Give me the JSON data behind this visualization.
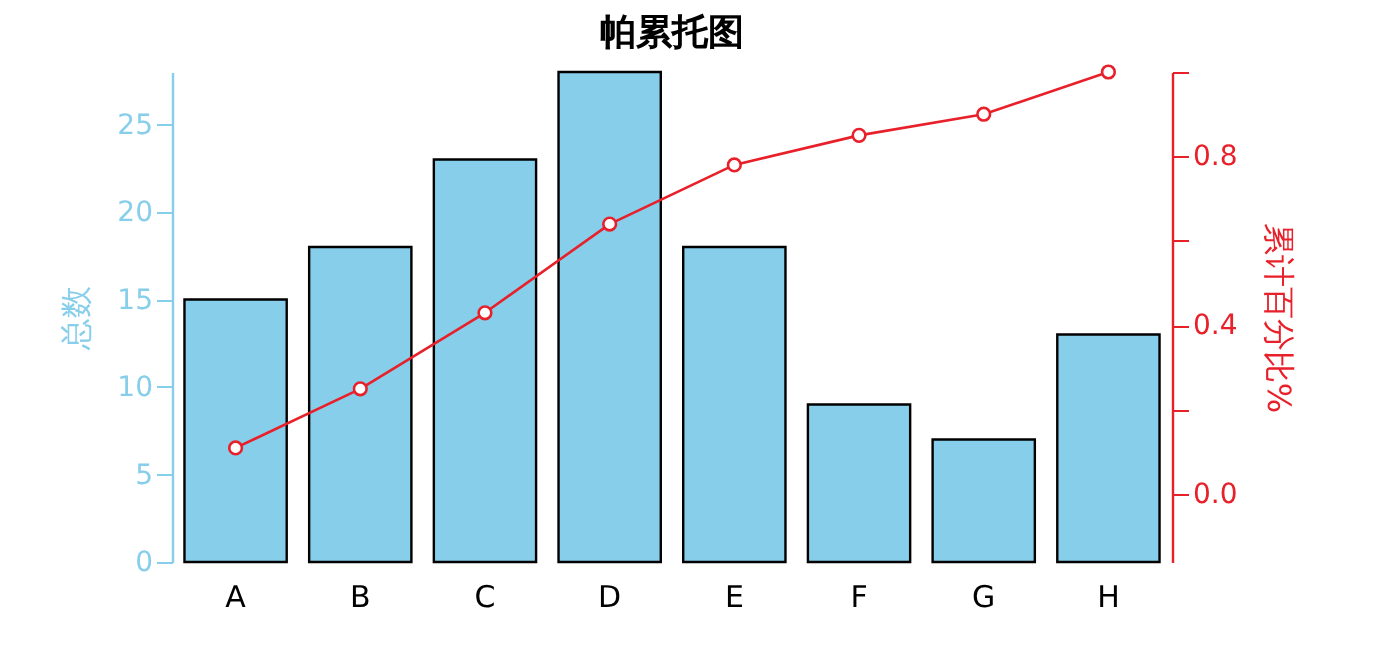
{
  "chart_data": {
    "type": "bar",
    "title": "帕累托图",
    "ylabel": "总数",
    "y2label": "累计百分比%",
    "categories": [
      "A",
      "B",
      "C",
      "D",
      "E",
      "F",
      "G",
      "H"
    ],
    "series": [
      {
        "color": "#87ceeb",
        "values": [
          15,
          18,
          23,
          28,
          18,
          9,
          7,
          13
        ]
      },
      {
        "type": "line",
        "axis": "y2",
        "color": "#e8202a",
        "values": [
          0.11,
          0.25,
          0.43,
          0.64,
          0.78,
          0.85,
          0.9,
          1.0
        ]
      }
    ],
    "ylim": [
      0,
      28
    ],
    "yticks": [
      0,
      5,
      10,
      15,
      20,
      25
    ],
    "y2lim": [
      -0.16,
      1.0
    ],
    "y2ticks": [
      {
        "value": 0.0,
        "label": "0.0"
      },
      {
        "value": 0.2,
        "label": null
      },
      {
        "value": 0.4,
        "label": "0.4"
      },
      {
        "value": 0.6,
        "label": null
      },
      {
        "value": 0.8,
        "label": "0.8"
      },
      {
        "value": 1.0,
        "label": null
      }
    ],
    "marker": "circle",
    "line_style": "solid",
    "grid": false,
    "legend": false
  }
}
